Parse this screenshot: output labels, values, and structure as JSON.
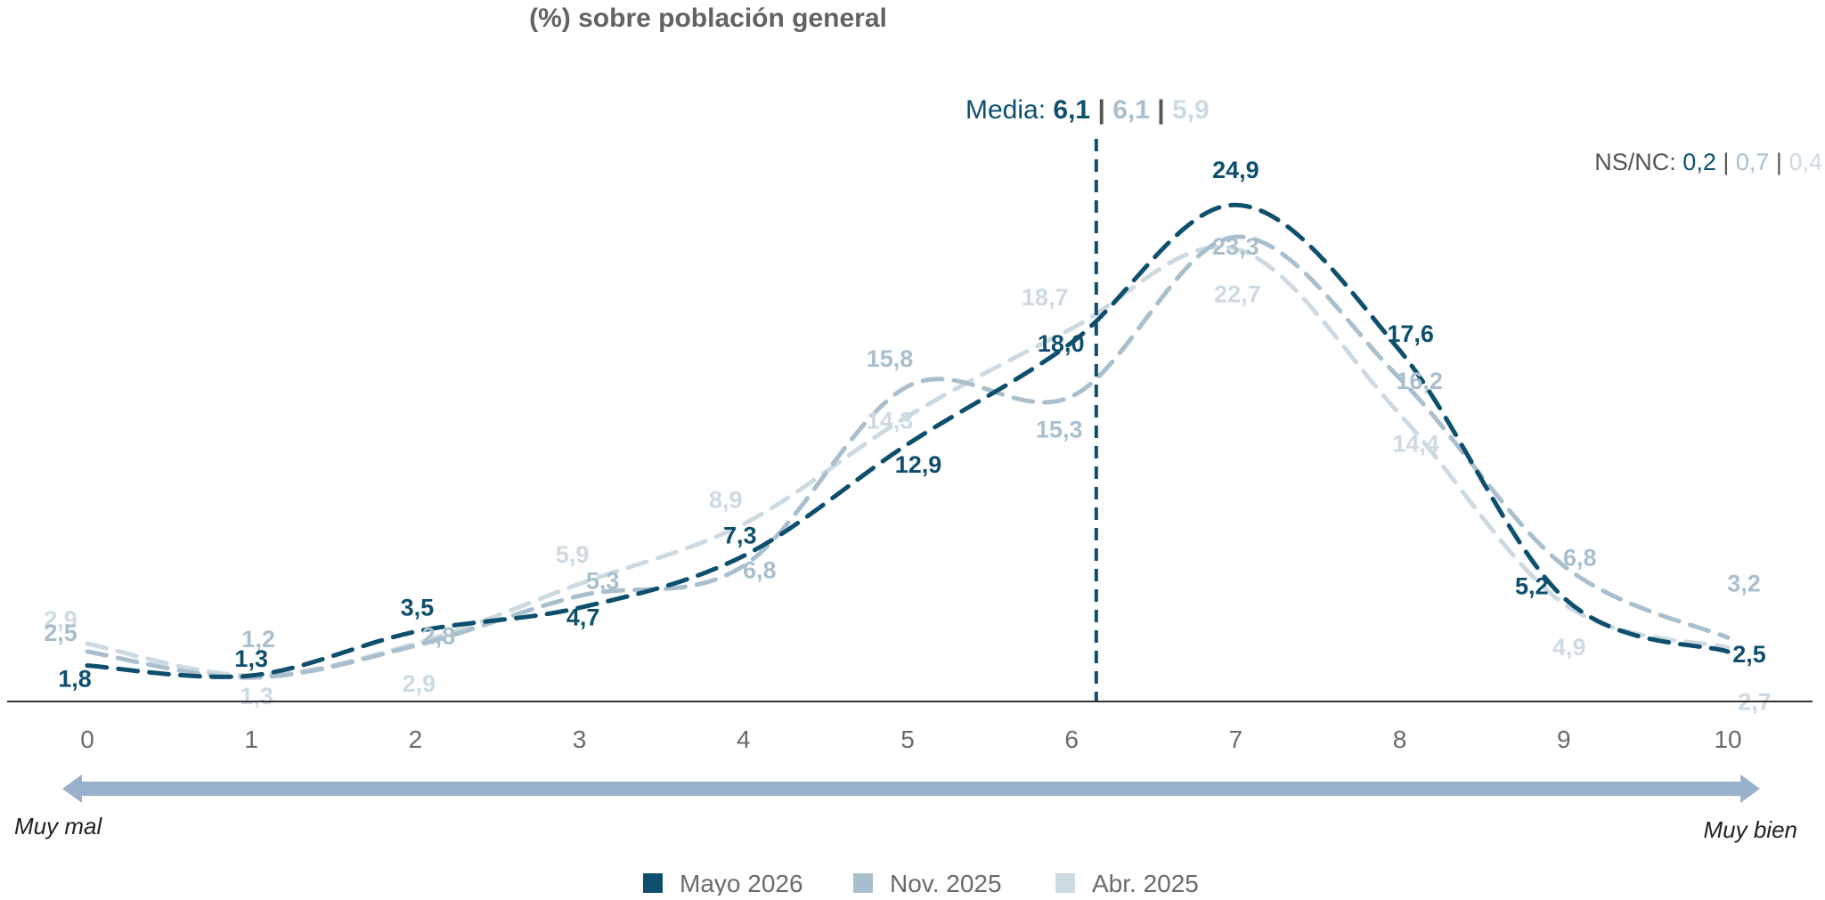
{
  "chart_data": {
    "type": "line",
    "title": "(%) sobre población general",
    "x": [
      0,
      1,
      2,
      3,
      4,
      5,
      6,
      7,
      8,
      9,
      10
    ],
    "tick_labels": [
      "0",
      "1",
      "2",
      "3",
      "4",
      "5",
      "6",
      "7",
      "8",
      "9",
      "10"
    ],
    "scale_left": "Muy mal",
    "scale_right": "Muy bien",
    "ylim": [
      0,
      28
    ],
    "grid": false,
    "legend_position": "bottom",
    "series": [
      {
        "name": "Mayo 2026",
        "color": "#0e4f6e",
        "values": [
          1.8,
          1.3,
          3.5,
          4.7,
          7.3,
          12.9,
          18.0,
          24.9,
          17.6,
          5.2,
          2.5
        ],
        "labels": [
          "1,8",
          "1,3",
          "3,5",
          "4,7",
          "7,3",
          "12,9",
          "18,0",
          "24,9",
          "17,6",
          "5,2",
          "2,5"
        ]
      },
      {
        "name": "Nov. 2025",
        "color": "#a9bfcd",
        "values": [
          2.5,
          1.2,
          2.8,
          5.3,
          6.8,
          15.8,
          15.3,
          23.3,
          16.2,
          6.8,
          3.2
        ],
        "labels": [
          "2,5",
          "1,2",
          "2,8",
          "5,3",
          "6,8",
          "15,8",
          "15,3",
          "23,3",
          "16,2",
          "6,8",
          "3,2"
        ]
      },
      {
        "name": "Abr. 2025",
        "color": "#cddae2",
        "values": [
          2.9,
          1.3,
          2.9,
          5.9,
          8.9,
          14.3,
          18.7,
          22.7,
          14.4,
          4.9,
          2.7
        ],
        "labels": [
          "2,9",
          "1,3",
          "2,9",
          "5,9",
          "8,9",
          "14,3",
          "18,7",
          "22,7",
          "14,4",
          "4,9",
          "2,7"
        ]
      }
    ],
    "media": {
      "label": "Media:",
      "position": 6.15,
      "values": [
        "6,1",
        "6,1",
        "5,9"
      ],
      "separator": "|"
    },
    "nsnc": {
      "label": "NS/NC:",
      "values": [
        "0,2",
        "0,7",
        "0,4"
      ],
      "separator": "|"
    },
    "colors": {
      "axis": "#333333",
      "arrow": "#9ab1cc",
      "media_line": "#0e4f6e",
      "title": "#636363"
    }
  }
}
